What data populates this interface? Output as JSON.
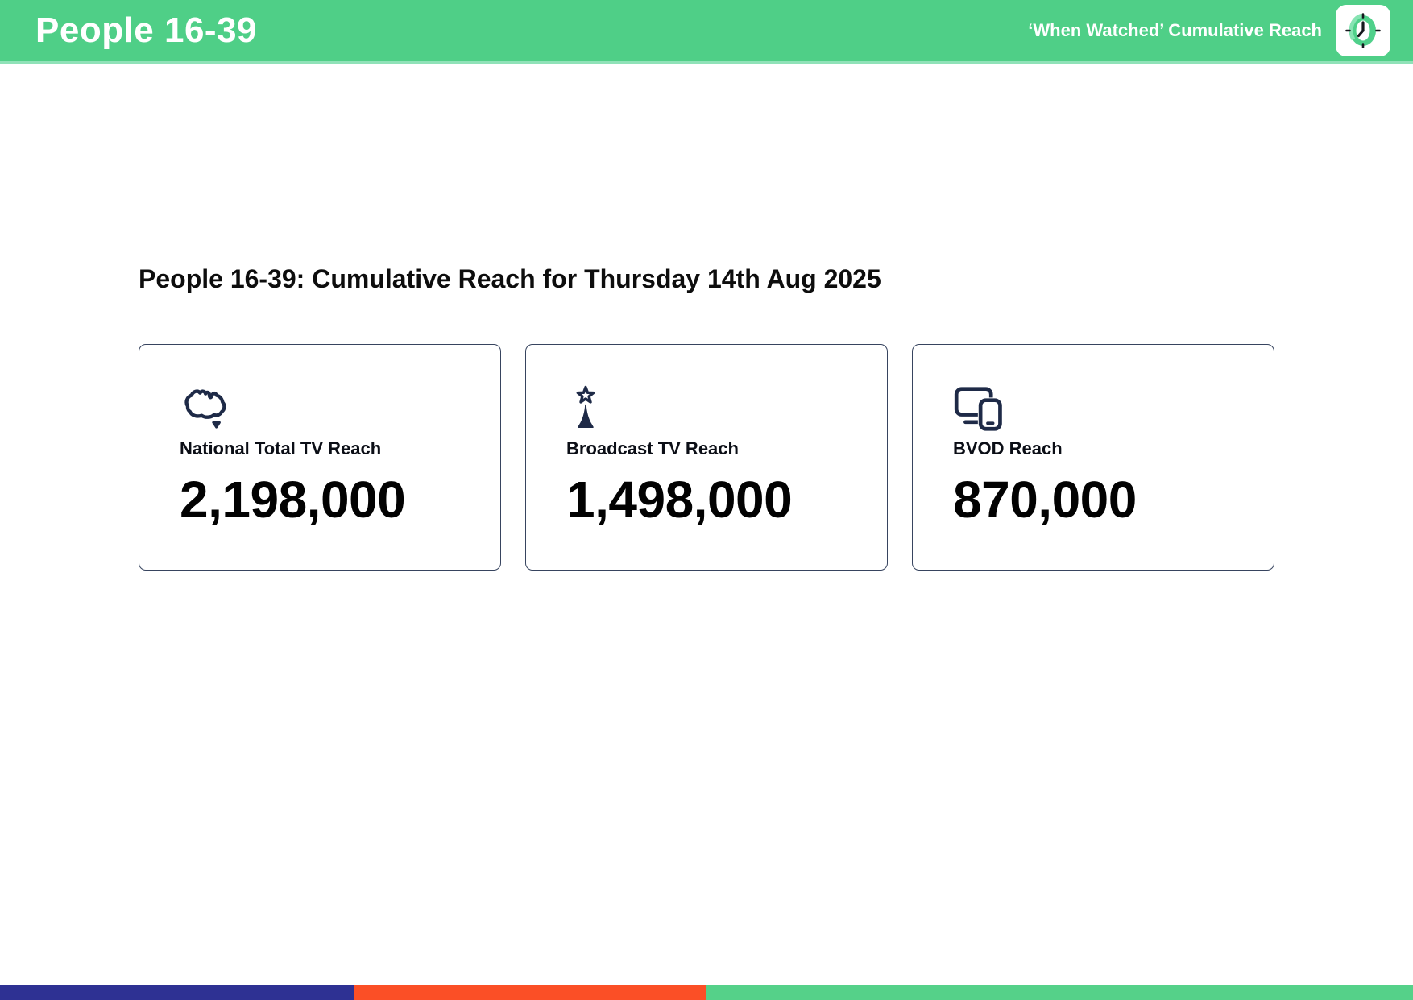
{
  "header": {
    "title": "People 16-39",
    "right_label": "‘When Watched’ Cumulative Reach",
    "bg_color": "#4fcf87"
  },
  "main": {
    "heading": "People 16-39: Cumulative Reach for Thursday 14th Aug 2025",
    "cards": [
      {
        "icon": "australia-map-icon",
        "label": "National Total TV Reach",
        "value": "2,198,000"
      },
      {
        "icon": "broadcast-tower-icon",
        "label": "Broadcast TV Reach",
        "value": "1,498,000"
      },
      {
        "icon": "devices-icon",
        "label": "BVOD Reach",
        "value": "870,000"
      }
    ],
    "icon_color": "#1e2a47"
  },
  "footer": {
    "segments": [
      {
        "color": "#2e3193",
        "width_pct": 25
      },
      {
        "color": "#fb4f26",
        "width_pct": 25
      },
      {
        "color": "#55d189",
        "width_pct": 50
      }
    ]
  }
}
